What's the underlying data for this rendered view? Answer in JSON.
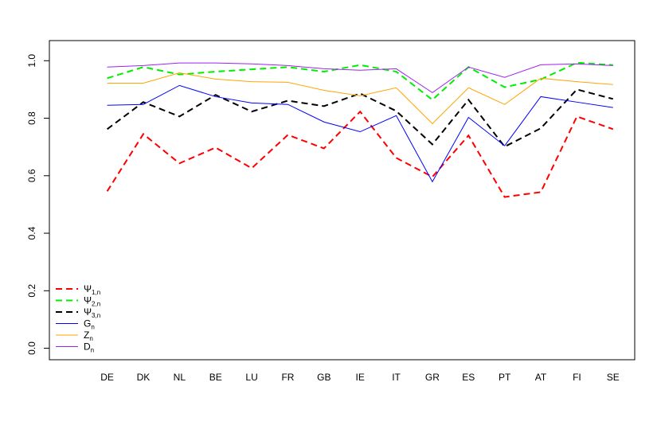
{
  "chart_data": {
    "type": "line",
    "categories": [
      null,
      "DE",
      "DK",
      "NL",
      "BE",
      "LU",
      "FR",
      "GB",
      "IE",
      "IT",
      "GR",
      "ES",
      "PT",
      "AT",
      "FI",
      "SE"
    ],
    "series": [
      {
        "name": "Ψ1,n",
        "color": "#ff0000",
        "dashed": true,
        "values": [
          null,
          0.546,
          0.745,
          0.643,
          0.698,
          0.626,
          0.742,
          0.695,
          0.823,
          0.662,
          0.596,
          0.74,
          0.526,
          0.543,
          0.806,
          0.762
        ]
      },
      {
        "name": "Ψ2,n",
        "color": "#00ee00",
        "dashed": true,
        "values": [
          null,
          0.939,
          0.978,
          0.952,
          0.962,
          0.97,
          0.978,
          0.962,
          0.985,
          0.962,
          0.864,
          0.978,
          0.908,
          0.935,
          0.993,
          0.985
        ]
      },
      {
        "name": "Ψ3,n",
        "color": "#000000",
        "dashed": true,
        "values": [
          null,
          0.762,
          0.856,
          0.806,
          0.881,
          0.823,
          0.861,
          0.842,
          0.886,
          0.825,
          0.709,
          0.864,
          0.701,
          0.765,
          0.9,
          0.867
        ]
      },
      {
        "name": "Gn",
        "color": "#0000ff",
        "dashed": false,
        "values": [
          null,
          0.845,
          0.848,
          0.914,
          0.875,
          0.853,
          0.848,
          0.787,
          0.753,
          0.809,
          0.579,
          0.803,
          0.704,
          0.875,
          0.856,
          0.837
        ]
      },
      {
        "name": "Zn",
        "color": "#ffa500",
        "dashed": false,
        "values": [
          null,
          0.922,
          0.922,
          0.958,
          0.936,
          0.927,
          0.925,
          0.897,
          0.878,
          0.906,
          0.781,
          0.906,
          0.848,
          0.939,
          0.927,
          0.917
        ]
      },
      {
        "name": "Dn",
        "color": "#a020f0",
        "dashed": false,
        "values": [
          null,
          0.978,
          0.983,
          0.992,
          0.992,
          0.989,
          0.983,
          0.972,
          0.967,
          0.972,
          0.889,
          0.978,
          0.942,
          0.986,
          0.989,
          0.983
        ]
      }
    ],
    "ylim": [
      -0.04,
      1.07
    ],
    "yticks": [
      {
        "value": 0,
        "label": "0.0"
      },
      0.2,
      0.4,
      0.6,
      0.8,
      {
        "value": 1,
        "label": "1.0"
      }
    ],
    "legend": "bottom-left"
  }
}
